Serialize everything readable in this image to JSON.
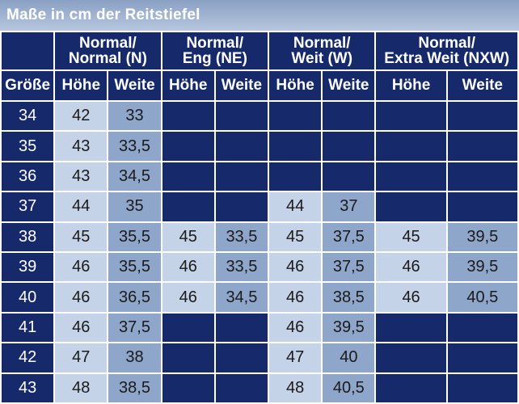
{
  "title": "Maße in cm der Reitstiefel",
  "groups": [
    {
      "line1": "Normal/",
      "line2": "Normal (N)"
    },
    {
      "line1": "Normal/",
      "line2": "Eng (NE)"
    },
    {
      "line1": "Normal/",
      "line2": "Weit (W)"
    },
    {
      "line1": "Normal/",
      "line2": "Extra Weit (NXW)"
    }
  ],
  "subheaders": {
    "size": "Größe",
    "height": "Höhe",
    "width": "Weite"
  },
  "rows": [
    {
      "size": "34",
      "cells": [
        "42",
        "33",
        "",
        "",
        "",
        "",
        "",
        ""
      ]
    },
    {
      "size": "35",
      "cells": [
        "43",
        "33,5",
        "",
        "",
        "",
        "",
        "",
        ""
      ]
    },
    {
      "size": "36",
      "cells": [
        "43",
        "34,5",
        "",
        "",
        "",
        "",
        "",
        ""
      ]
    },
    {
      "size": "37",
      "cells": [
        "44",
        "35",
        "",
        "",
        "44",
        "37",
        "",
        ""
      ]
    },
    {
      "size": "38",
      "cells": [
        "45",
        "35,5",
        "45",
        "33,5",
        "45",
        "37,5",
        "45",
        "39,5"
      ]
    },
    {
      "size": "39",
      "cells": [
        "46",
        "35,5",
        "46",
        "33,5",
        "46",
        "37,5",
        "46",
        "39,5"
      ]
    },
    {
      "size": "40",
      "cells": [
        "46",
        "36,5",
        "46",
        "34,5",
        "46",
        "38,5",
        "46",
        "40,5"
      ]
    },
    {
      "size": "41",
      "cells": [
        "46",
        "37,5",
        "",
        "",
        "46",
        "39,5",
        "",
        ""
      ]
    },
    {
      "size": "42",
      "cells": [
        "47",
        "38",
        "",
        "",
        "47",
        "40",
        "",
        ""
      ]
    },
    {
      "size": "43",
      "cells": [
        "48",
        "38,5",
        "",
        "",
        "48",
        "40,5",
        "",
        ""
      ]
    }
  ]
}
